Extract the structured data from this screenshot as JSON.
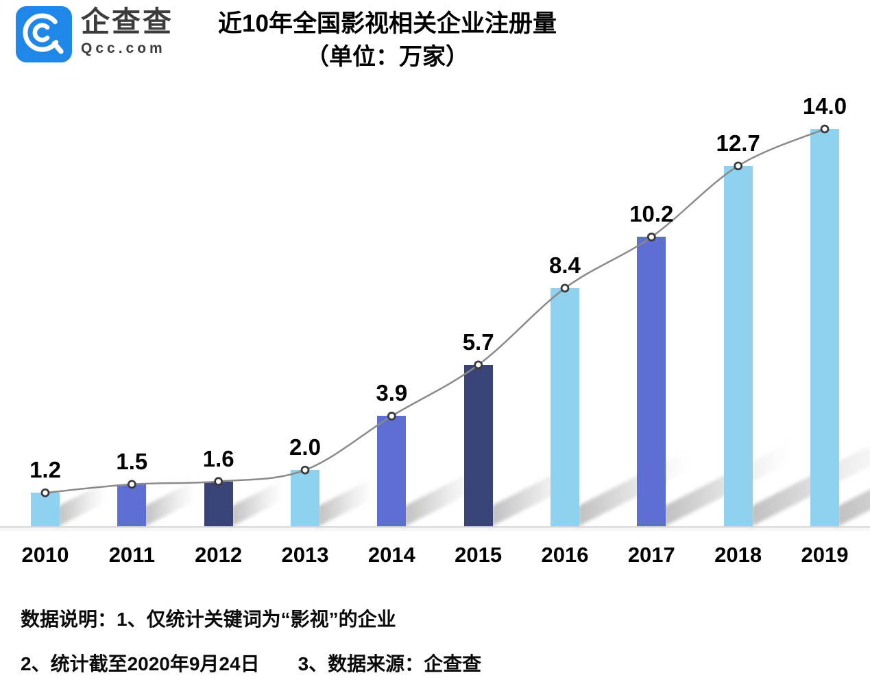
{
  "header": {
    "logo": {
      "brand_cn": "企查查",
      "brand_domain": "Qcc.com",
      "brand_color": "#1e87e8",
      "icon": "qcc-magnifier-logo"
    }
  },
  "chart_data": {
    "type": "bar",
    "overlay": "line",
    "title": "近10年全国影视相关企业注册量",
    "subtitle": "（单位：万家）",
    "unit": "万家",
    "xlabel": "",
    "ylabel": "",
    "categories": [
      "2010",
      "2011",
      "2012",
      "2013",
      "2014",
      "2015",
      "2016",
      "2017",
      "2018",
      "2019"
    ],
    "values": [
      1.2,
      1.5,
      1.6,
      2.0,
      3.9,
      5.7,
      8.4,
      10.2,
      12.7,
      14.0
    ],
    "value_labels": [
      "1.2",
      "1.5",
      "1.6",
      "2.0",
      "3.9",
      "5.7",
      "8.4",
      "10.2",
      "12.7",
      "14.0"
    ],
    "ylim": [
      0,
      14.5
    ],
    "grid": false,
    "legend": false,
    "bar_colors": [
      "#8ed2f0",
      "#5e6fd4",
      "#3a4376",
      "#8ed2f0",
      "#5e6fd4",
      "#3a4376",
      "#8ed2f0",
      "#5e6fd4",
      "#8ed2f0",
      "#8ed2f0"
    ],
    "palette": {
      "light_blue": "#8ed2f0",
      "periwinkle": "#5e6fd4",
      "navy": "#3a4376"
    },
    "line_color": "#8a8a8a",
    "marker_fill": "#ffffff",
    "marker_stroke": "#3a3a3a",
    "axis_color": "#d8d8d8"
  },
  "footer": {
    "line1": "数据说明：1、仅统计关键词为“影视”的企业",
    "line2": "2、统计截至2020年9月24日　　3、数据来源：企查查"
  }
}
